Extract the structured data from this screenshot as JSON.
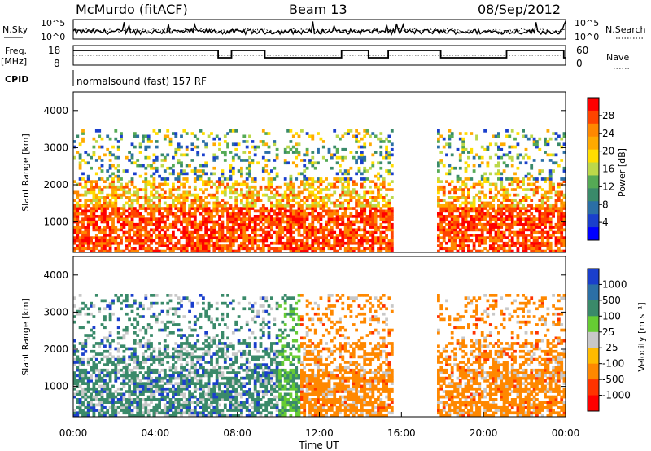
{
  "header": {
    "station": "McMurdo (fitACF)",
    "beam": "Beam 13",
    "date": "08/Sep/2012"
  },
  "top_panels": {
    "nsky_label": "N.Sky",
    "nsky_ticks": [
      "10^5",
      "10^0"
    ],
    "nsearch_label": "N.Search",
    "nsearch_ticks": [
      "10^5",
      "10^0"
    ],
    "freq_label_1": "Freq.",
    "freq_label_2": "[MHz]",
    "freq_ticks": [
      "18",
      "8"
    ],
    "nave_label": "Nave",
    "nave_ticks": [
      "60",
      "0"
    ],
    "cpid_label": "CPID",
    "cpid_text": "normalsound (fast) 157 RF"
  },
  "chart_data": [
    {
      "type": "heatmap",
      "name": "power",
      "xlabel": "Time UT",
      "ylabel": "Slant Range [km]",
      "yticks": [
        "4000",
        "3000",
        "2000",
        "1000"
      ],
      "ylim": [
        180,
        4500
      ],
      "xlim_hours": [
        0,
        24
      ],
      "colorbar_label": "Power [dB]",
      "colorbar_ticks": [
        "28",
        "24",
        "20",
        "16",
        "12",
        "8",
        "4"
      ],
      "colorbar_colors": [
        "#ff0000",
        "#ff4400",
        "#ff8800",
        "#ffaa00",
        "#ffdd00",
        "#bcd84a",
        "#55aa55",
        "#3a8a6a",
        "#2b6fa6",
        "#1a3fcc",
        "#0000ff"
      ]
    },
    {
      "type": "heatmap",
      "name": "velocity",
      "xlabel": "Time UT",
      "ylabel": "Slant Range [km]",
      "yticks": [
        "4000",
        "3000",
        "2000",
        "1000"
      ],
      "ylim": [
        180,
        4500
      ],
      "xlim_hours": [
        0,
        24
      ],
      "colorbar_label": "Velocity [m s⁻¹]",
      "colorbar_ticks": [
        "1000",
        "500",
        "100",
        "25",
        "-25",
        "-100",
        "-500",
        "-1000"
      ],
      "colorbar_colors": [
        "#1a3fcc",
        "#2b6fa6",
        "#3a8a6a",
        "#66cc33",
        "#c8c8c8",
        "#ffbb00",
        "#ff8800",
        "#ff3300",
        "#ff0000"
      ]
    }
  ],
  "time_axis": {
    "ticks": [
      "00:00",
      "04:00",
      "08:00",
      "12:00",
      "16:00",
      "20:00",
      "00:00"
    ],
    "label": "Time UT"
  }
}
